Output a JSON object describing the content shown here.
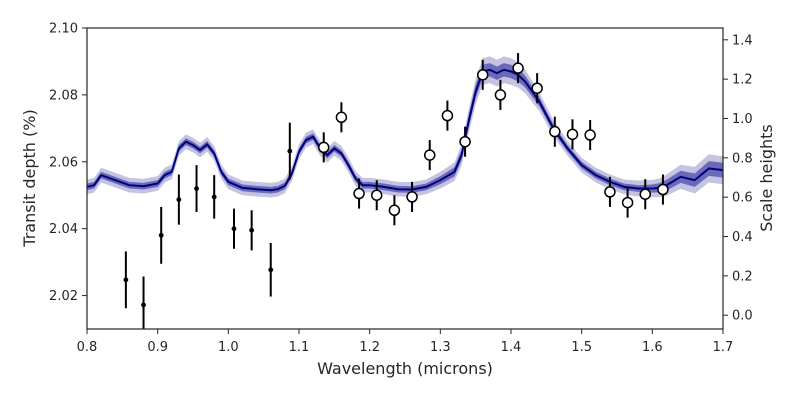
{
  "chart_data": {
    "type": "line",
    "title": "",
    "xlabel": "Wavelength (microns)",
    "ylabel": "Transit depth (%)",
    "y2label": "Scale heights",
    "xlim": [
      0.8,
      1.7
    ],
    "ylim": [
      2.01,
      2.1
    ],
    "y2lim": [
      -0.07,
      1.46
    ],
    "xticks": [
      0.8,
      0.9,
      1.0,
      1.1,
      1.2,
      1.3,
      1.4,
      1.5,
      1.6,
      1.7
    ],
    "xtick_labels": [
      "0.8",
      "0.9",
      "1.0",
      "1.1",
      "1.2",
      "1.3",
      "1.4",
      "1.5",
      "1.6",
      "1.7"
    ],
    "yticks": [
      2.02,
      2.04,
      2.06,
      2.08,
      2.1
    ],
    "ytick_labels": [
      "2.02",
      "2.04",
      "2.06",
      "2.08",
      "2.10"
    ],
    "y2ticks": [
      0.0,
      0.2,
      0.4,
      0.6,
      0.8,
      1.0,
      1.2,
      1.4
    ],
    "y2tick_labels": [
      "0.0",
      "0.2",
      "0.4",
      "0.6",
      "0.8",
      "1.0",
      "1.2",
      "1.4"
    ],
    "grid": false,
    "colors": {
      "model_line": "#00007f",
      "band_inner": "#6a6ab8",
      "band_outer": "#c4c4e2",
      "points": "#000000"
    },
    "model": {
      "x": [
        0.8,
        0.81,
        0.82,
        0.84,
        0.86,
        0.88,
        0.9,
        0.91,
        0.92,
        0.93,
        0.94,
        0.95,
        0.96,
        0.97,
        0.98,
        0.99,
        1.0,
        1.02,
        1.04,
        1.06,
        1.07,
        1.08,
        1.09,
        1.1,
        1.11,
        1.12,
        1.13,
        1.14,
        1.15,
        1.16,
        1.17,
        1.18,
        1.19,
        1.2,
        1.22,
        1.24,
        1.26,
        1.28,
        1.3,
        1.32,
        1.33,
        1.34,
        1.35,
        1.36,
        1.37,
        1.38,
        1.39,
        1.4,
        1.41,
        1.42,
        1.43,
        1.44,
        1.45,
        1.46,
        1.48,
        1.5,
        1.52,
        1.54,
        1.56,
        1.58,
        1.6,
        1.61,
        1.62,
        1.64,
        1.66,
        1.68,
        1.7
      ],
      "y": [
        2.0525,
        2.053,
        2.056,
        2.0545,
        2.053,
        2.0527,
        2.0535,
        2.056,
        2.057,
        2.064,
        2.066,
        2.065,
        2.0635,
        2.0652,
        2.0625,
        2.057,
        2.054,
        2.0522,
        2.0518,
        2.0515,
        2.0518,
        2.0528,
        2.0565,
        2.063,
        2.0665,
        2.0675,
        2.064,
        2.062,
        2.064,
        2.0625,
        2.059,
        2.055,
        2.053,
        2.053,
        2.0525,
        2.0518,
        2.0517,
        2.0525,
        2.0545,
        2.057,
        2.062,
        2.072,
        2.081,
        2.087,
        2.0875,
        2.0865,
        2.0875,
        2.087,
        2.086,
        2.084,
        2.081,
        2.078,
        2.074,
        2.07,
        2.064,
        2.059,
        2.056,
        2.054,
        2.0525,
        2.052,
        2.052,
        2.0522,
        2.053,
        2.0555,
        2.0545,
        2.058,
        2.0575
      ],
      "inner_halfwidth": [
        0.001,
        0.001,
        0.001,
        0.001,
        0.001,
        0.001,
        0.001,
        0.001,
        0.001,
        0.001,
        0.001,
        0.001,
        0.001,
        0.001,
        0.001,
        0.001,
        0.001,
        0.001,
        0.001,
        0.001,
        0.001,
        0.001,
        0.001,
        0.001,
        0.001,
        0.001,
        0.001,
        0.001,
        0.001,
        0.001,
        0.001,
        0.001,
        0.001,
        0.001,
        0.001,
        0.001,
        0.001,
        0.001,
        0.0012,
        0.0014,
        0.0016,
        0.0018,
        0.002,
        0.002,
        0.002,
        0.002,
        0.002,
        0.002,
        0.002,
        0.0018,
        0.0016,
        0.0014,
        0.0012,
        0.0012,
        0.001,
        0.001,
        0.001,
        0.001,
        0.001,
        0.001,
        0.0012,
        0.0014,
        0.0016,
        0.0018,
        0.002,
        0.0022,
        0.0022
      ],
      "outer_halfwidth": [
        0.0022,
        0.0022,
        0.0022,
        0.0022,
        0.0022,
        0.0022,
        0.0022,
        0.0022,
        0.0022,
        0.0022,
        0.0022,
        0.0022,
        0.0022,
        0.0022,
        0.0022,
        0.0022,
        0.0022,
        0.0022,
        0.0022,
        0.0022,
        0.0022,
        0.0022,
        0.0022,
        0.0022,
        0.0022,
        0.0022,
        0.0022,
        0.0022,
        0.0022,
        0.0022,
        0.0022,
        0.0022,
        0.0022,
        0.0022,
        0.0022,
        0.0022,
        0.0022,
        0.0022,
        0.0025,
        0.0028,
        0.0032,
        0.0036,
        0.0038,
        0.004,
        0.004,
        0.004,
        0.004,
        0.004,
        0.0038,
        0.0036,
        0.0032,
        0.0028,
        0.0026,
        0.0024,
        0.0022,
        0.0022,
        0.0022,
        0.0022,
        0.0022,
        0.0024,
        0.0026,
        0.0028,
        0.0032,
        0.0036,
        0.004,
        0.0042,
        0.0042
      ]
    },
    "points_small": [
      {
        "x": 0.855,
        "y": 2.0247,
        "err": 0.0085
      },
      {
        "x": 0.88,
        "y": 2.0172,
        "err": 0.0085
      },
      {
        "x": 0.905,
        "y": 2.038,
        "err": 0.0085
      },
      {
        "x": 0.93,
        "y": 2.0487,
        "err": 0.0075
      },
      {
        "x": 0.955,
        "y": 2.052,
        "err": 0.007
      },
      {
        "x": 0.98,
        "y": 2.0495,
        "err": 0.0065
      },
      {
        "x": 1.008,
        "y": 2.04,
        "err": 0.006
      },
      {
        "x": 1.033,
        "y": 2.0395,
        "err": 0.006
      },
      {
        "x": 1.06,
        "y": 2.0277,
        "err": 0.008
      },
      {
        "x": 1.087,
        "y": 2.0632,
        "err": 0.0085
      }
    ],
    "points_open": [
      {
        "x": 1.135,
        "y": 2.0643,
        "err": 0.0045
      },
      {
        "x": 1.16,
        "y": 2.0733,
        "err": 0.0045
      },
      {
        "x": 1.185,
        "y": 2.0505,
        "err": 0.0045
      },
      {
        "x": 1.21,
        "y": 2.05,
        "err": 0.0045
      },
      {
        "x": 1.235,
        "y": 2.0455,
        "err": 0.0045
      },
      {
        "x": 1.26,
        "y": 2.0495,
        "err": 0.0045
      },
      {
        "x": 1.285,
        "y": 2.062,
        "err": 0.0045
      },
      {
        "x": 1.31,
        "y": 2.0738,
        "err": 0.0045
      },
      {
        "x": 1.335,
        "y": 2.066,
        "err": 0.0045
      },
      {
        "x": 1.36,
        "y": 2.086,
        "err": 0.0045
      },
      {
        "x": 1.385,
        "y": 2.08,
        "err": 0.0045
      },
      {
        "x": 1.41,
        "y": 2.088,
        "err": 0.0045
      },
      {
        "x": 1.437,
        "y": 2.082,
        "err": 0.0045
      },
      {
        "x": 1.462,
        "y": 2.069,
        "err": 0.0045
      },
      {
        "x": 1.487,
        "y": 2.0682,
        "err": 0.0045
      },
      {
        "x": 1.512,
        "y": 2.068,
        "err": 0.0045
      },
      {
        "x": 1.54,
        "y": 2.051,
        "err": 0.0045
      },
      {
        "x": 1.565,
        "y": 2.0478,
        "err": 0.0045
      },
      {
        "x": 1.59,
        "y": 2.0503,
        "err": 0.0045
      },
      {
        "x": 1.615,
        "y": 2.0517,
        "err": 0.0045
      }
    ]
  }
}
